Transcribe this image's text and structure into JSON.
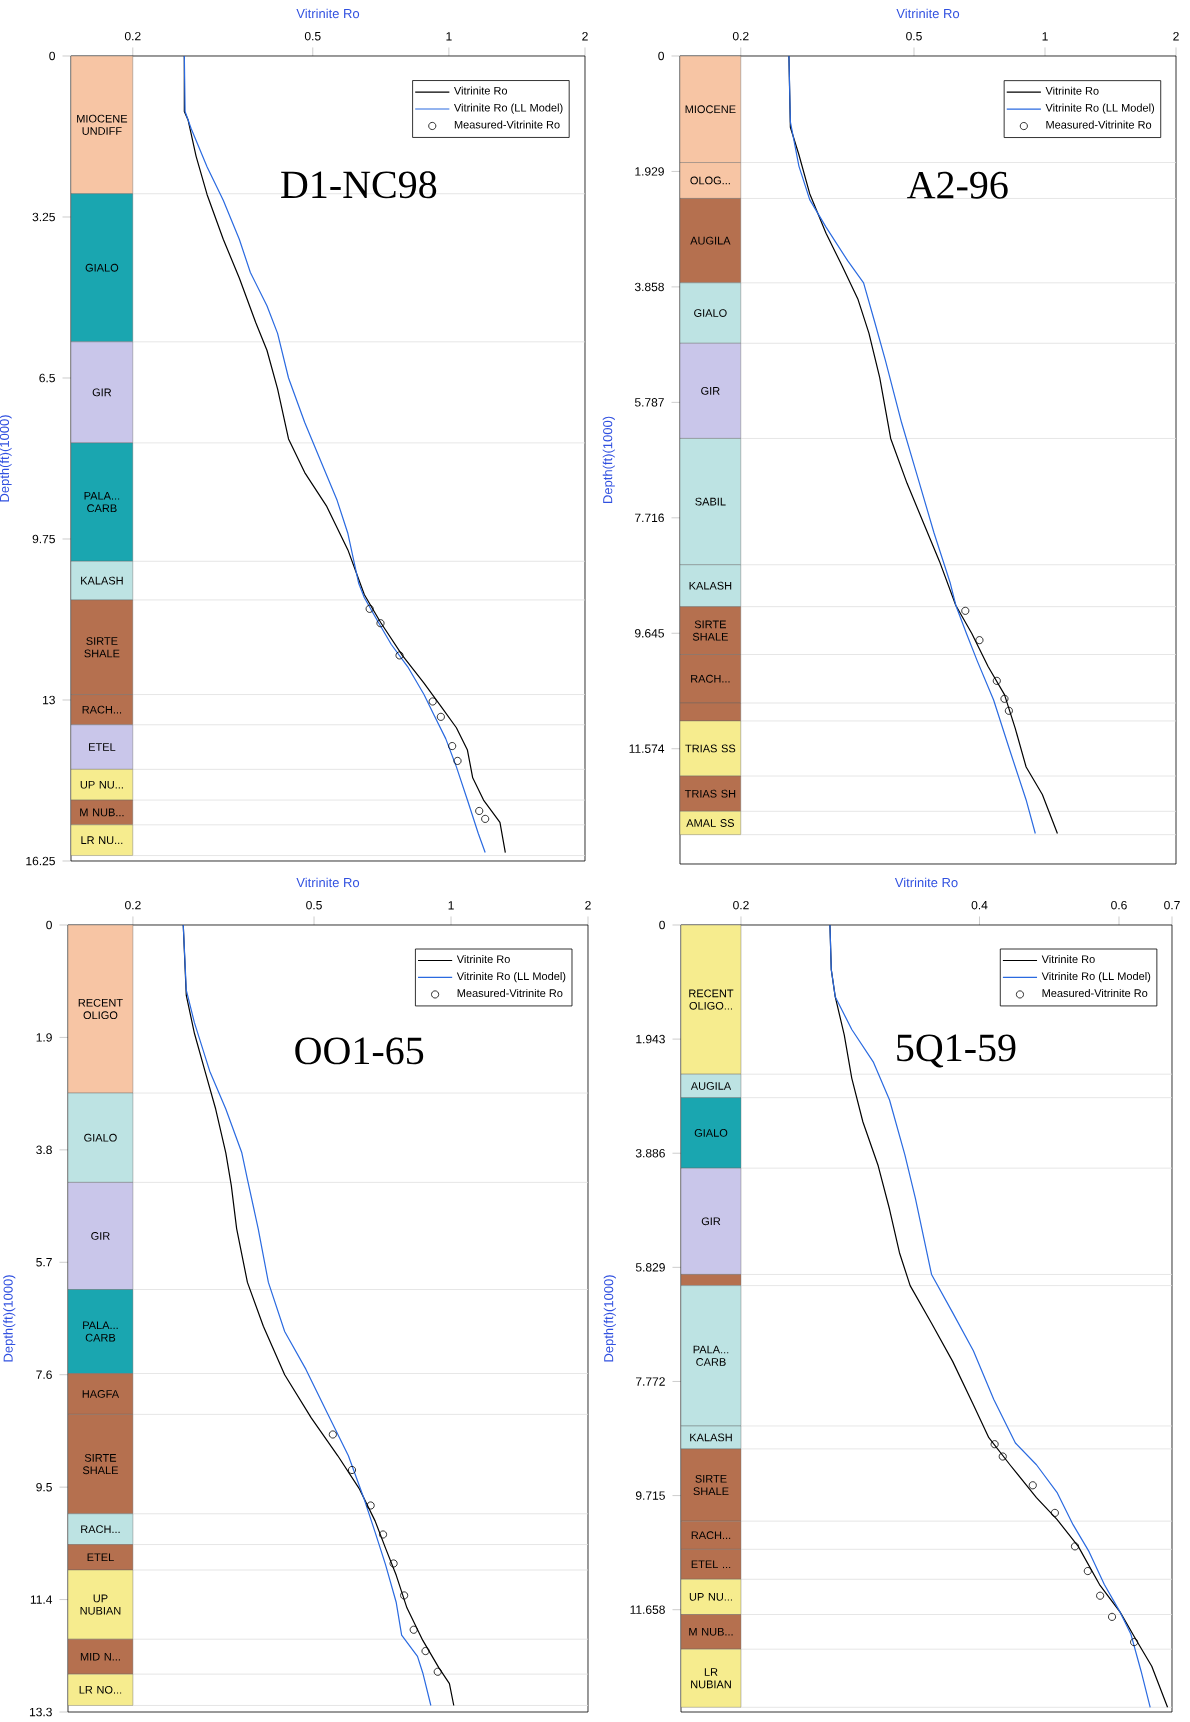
{
  "chart_data": [
    {
      "type": "line",
      "title": "D1-NC98",
      "xlabel": "Vitrinite Ro",
      "ylabel": "Depth(ft)(1000)",
      "log": "x",
      "xlim": [
        0.146,
        2
      ],
      "xticks": [
        0.2,
        0.5,
        1,
        2
      ],
      "ylim": [
        16.25,
        0
      ],
      "yticks": [
        0,
        3.25,
        6.5,
        9.75,
        13,
        16.25
      ],
      "legend": "top right",
      "series": [
        {
          "name": "Vitrinite Ro",
          "color": "#000000",
          "x": [
            0.26,
            0.26,
            0.265,
            0.276,
            0.292,
            0.317,
            0.344,
            0.374,
            0.396,
            0.418,
            0.442,
            0.48,
            0.536,
            0.598,
            0.65,
            0.706,
            0.789,
            0.881,
            0.957,
            1.039,
            1.099,
            1.129,
            1.193,
            1.297,
            1.333
          ],
          "values": [
            0,
            1.12,
            1.29,
            2.02,
            2.8,
            3.7,
            4.48,
            5.38,
            5.94,
            6.72,
            7.73,
            8.41,
            9.08,
            9.97,
            10.87,
            11.43,
            12.1,
            12.66,
            13.11,
            13.56,
            14.01,
            14.57,
            15.02,
            15.47,
            16.08
          ]
        },
        {
          "name": "Vitrinite Ro (LL Model)",
          "color": "#2a6ae0",
          "x": [
            0.26,
            0.261,
            0.269,
            0.292,
            0.317,
            0.344,
            0.364,
            0.396,
            0.418,
            0.442,
            0.48,
            0.521,
            0.566,
            0.598,
            0.632,
            0.65,
            0.687,
            0.746,
            0.811,
            0.881,
            0.931,
            0.984,
            1.039,
            1.099,
            1.161,
            1.203
          ],
          "values": [
            0,
            1.12,
            1.46,
            2.24,
            2.91,
            3.7,
            4.37,
            5.04,
            5.6,
            6.5,
            7.4,
            8.18,
            8.97,
            9.64,
            10.65,
            10.93,
            11.32,
            11.88,
            12.33,
            12.89,
            13.34,
            13.78,
            14.35,
            15.02,
            15.69,
            16.08
          ]
        },
        {
          "name": "Measured-Vitrinite Ro",
          "type": "scatter",
          "marker": "circle",
          "color": "#000000",
          "x": [
            0.668,
            0.706,
            0.778,
            0.921,
            0.96,
            1.017,
            1.045,
            1.167,
            1.203
          ],
          "values": [
            11.16,
            11.45,
            12.1,
            13.03,
            13.34,
            13.93,
            14.23,
            15.24,
            15.4
          ]
        }
      ],
      "bands": [
        {
          "axis": "y",
          "from": 0,
          "to": 2.78,
          "label": "MIOCENE UNDIFF",
          "color": "#f7c5a4"
        },
        {
          "axis": "y",
          "from": 2.78,
          "to": 5.77,
          "label": "GIALO",
          "color": "#1aa6b0"
        },
        {
          "axis": "y",
          "from": 5.77,
          "to": 7.81,
          "label": "GIR",
          "color": "#c9c6ea"
        },
        {
          "axis": "y",
          "from": 7.81,
          "to": 10.2,
          "label": "PALA... CARB",
          "color": "#1aa6b0"
        },
        {
          "axis": "y",
          "from": 10.2,
          "to": 10.98,
          "label": "KALASH",
          "color": "#bde3e3"
        },
        {
          "axis": "y",
          "from": 10.98,
          "to": 12.89,
          "label": "SIRTE SHALE",
          "color": "#b5704f"
        },
        {
          "axis": "y",
          "from": 12.89,
          "to": 13.5,
          "label": "RACH...",
          "color": "#b5704f"
        },
        {
          "axis": "y",
          "from": 13.5,
          "to": 14.4,
          "label": "ETEL",
          "color": "#c9c6ea"
        },
        {
          "axis": "y",
          "from": 14.4,
          "to": 15.02,
          "label": "UP NU...",
          "color": "#f6ec8e"
        },
        {
          "axis": "y",
          "from": 15.02,
          "to": 15.52,
          "label": "M NUB...",
          "color": "#b5704f"
        },
        {
          "axis": "y",
          "from": 15.52,
          "to": 16.14,
          "label": "LR NU...",
          "color": "#f6ec8e"
        }
      ]
    },
    {
      "type": "line",
      "title": "A2-96",
      "xlabel": "Vitrinite Ro",
      "ylabel": "Depth(ft)(1000)",
      "log": "x",
      "xlim": [
        0.145,
        2
      ],
      "xticks": [
        0.2,
        0.5,
        1,
        2
      ],
      "ylim": [
        13.5,
        0
      ],
      "yticks": [
        0,
        1.929,
        3.858,
        5.787,
        7.716,
        9.645,
        11.574
      ],
      "legend": "top right",
      "series": [
        {
          "name": "Vitrinite Ro",
          "color": "#000000",
          "x": [
            0.258,
            0.26,
            0.272,
            0.288,
            0.314,
            0.342,
            0.372,
            0.394,
            0.417,
            0.442,
            0.482,
            0.525,
            0.572,
            0.624,
            0.679,
            0.74,
            0.807,
            0.854,
            0.905,
            0.986,
            1.068
          ],
          "values": [
            0,
            1.19,
            1.65,
            2.3,
            2.96,
            3.51,
            4.07,
            4.63,
            5.37,
            6.39,
            7.14,
            7.79,
            8.44,
            9.18,
            9.65,
            10.2,
            10.67,
            11.23,
            11.88,
            12.34,
            12.99
          ]
        },
        {
          "name": "Vitrinite Ro (LL Model)",
          "color": "#2a6ae0",
          "x": [
            0.258,
            0.26,
            0.272,
            0.288,
            0.314,
            0.352,
            0.383,
            0.406,
            0.43,
            0.468,
            0.51,
            0.556,
            0.606,
            0.624,
            0.66,
            0.699,
            0.762,
            0.83,
            0.905,
            0.95
          ],
          "values": [
            0,
            1.1,
            1.84,
            2.4,
            2.86,
            3.42,
            3.79,
            4.44,
            5.09,
            6.12,
            7.04,
            7.97,
            8.81,
            9.18,
            9.65,
            10.11,
            10.76,
            11.6,
            12.43,
            12.99
          ]
        },
        {
          "name": "Measured-Vitrinite Ro",
          "type": "scatter",
          "marker": "circle",
          "color": "#000000",
          "x": [
            0.656,
            0.707,
            0.775,
            0.807,
            0.826
          ],
          "values": [
            9.27,
            9.76,
            10.44,
            10.74,
            10.94
          ]
        }
      ],
      "bands": [
        {
          "axis": "y",
          "from": 0,
          "to": 1.78,
          "label": "MIOCENE",
          "color": "#f7c5a4"
        },
        {
          "axis": "y",
          "from": 1.78,
          "to": 2.38,
          "label": "OLOG...",
          "color": "#f7c5a4"
        },
        {
          "axis": "y",
          "from": 2.38,
          "to": 3.79,
          "label": "AUGILA",
          "color": "#b5704f"
        },
        {
          "axis": "y",
          "from": 3.79,
          "to": 4.8,
          "label": "GIALO",
          "color": "#bde3e3"
        },
        {
          "axis": "y",
          "from": 4.8,
          "to": 6.39,
          "label": "GIR",
          "color": "#c9c6ea"
        },
        {
          "axis": "y",
          "from": 6.39,
          "to": 8.5,
          "label": "SABIL",
          "color": "#bde3e3"
        },
        {
          "axis": "y",
          "from": 8.5,
          "to": 9.2,
          "label": "KALASH",
          "color": "#bde3e3"
        },
        {
          "axis": "y",
          "from": 9.2,
          "to": 10.0,
          "label": "SIRTE SHALE",
          "color": "#b5704f"
        },
        {
          "axis": "y",
          "from": 10.0,
          "to": 10.81,
          "label": "RACH...",
          "color": "#b5704f"
        },
        {
          "axis": "y",
          "from": 10.81,
          "to": 11.11,
          "label": null,
          "color": "#b5704f"
        },
        {
          "axis": "y",
          "from": 11.11,
          "to": 12.03,
          "label": "TRIAS SS",
          "color": "#f6ec8e"
        },
        {
          "axis": "y",
          "from": 12.03,
          "to": 12.62,
          "label": "TRIAS SH",
          "color": "#b5704f"
        },
        {
          "axis": "y",
          "from": 12.62,
          "to": 13.01,
          "label": "AMAL SS",
          "color": "#f6ec8e"
        }
      ]
    },
    {
      "type": "line",
      "title": "OO1-65",
      "xlabel": "Vitrinite Ro",
      "ylabel": "Depth(ft)(1000)",
      "log": "x",
      "xlim": [
        0.144,
        2
      ],
      "xticks": [
        0.2,
        0.5,
        1,
        2
      ],
      "ylim": [
        13.3,
        0
      ],
      "yticks": [
        0,
        1.9,
        3.8,
        5.7,
        7.6,
        9.5,
        11.4,
        13.3
      ],
      "legend": "top right",
      "series": [
        {
          "name": "Vitrinite Ro",
          "color": "#000000",
          "x": [
            0.258,
            0.262,
            0.273,
            0.288,
            0.304,
            0.32,
            0.329,
            0.338,
            0.357,
            0.387,
            0.431,
            0.493,
            0.564,
            0.628,
            0.681,
            0.718,
            0.758,
            0.8,
            0.867,
            0.94,
            0.992,
            1.014
          ],
          "values": [
            0,
            1.19,
            1.83,
            2.47,
            3.11,
            3.85,
            4.4,
            5.13,
            6.04,
            6.78,
            7.6,
            8.33,
            8.97,
            9.52,
            10.07,
            10.53,
            10.99,
            11.54,
            12.09,
            12.55,
            12.82,
            13.19
          ]
        },
        {
          "name": "Vitrinite Ro (LL Model)",
          "color": "#2a6ae0",
          "x": [
            0.258,
            0.262,
            0.273,
            0.295,
            0.32,
            0.347,
            0.357,
            0.377,
            0.397,
            0.431,
            0.48,
            0.534,
            0.595,
            0.645,
            0.681,
            0.718,
            0.758,
            0.779,
            0.844,
            0.867,
            0.903
          ],
          "values": [
            0,
            1.1,
            1.65,
            2.47,
            3.11,
            3.85,
            4.3,
            5.13,
            6.04,
            6.87,
            7.51,
            8.24,
            8.97,
            9.71,
            10.26,
            10.81,
            11.45,
            12.0,
            12.36,
            12.64,
            13.19
          ]
        },
        {
          "name": "Measured-Vitrinite Ro",
          "type": "scatter",
          "marker": "circle",
          "color": "#000000",
          "x": [
            0.55,
            0.606,
            0.666,
            0.709,
            0.748,
            0.789,
            0.828,
            0.879,
            0.935
          ],
          "values": [
            8.61,
            9.21,
            9.81,
            10.3,
            10.79,
            11.33,
            11.91,
            12.27,
            12.62
          ]
        }
      ],
      "bands": [
        {
          "axis": "y",
          "from": 0,
          "to": 2.84,
          "label": "RECENT OLIGO",
          "color": "#f7c5a4"
        },
        {
          "axis": "y",
          "from": 2.84,
          "to": 4.35,
          "label": "GIALO",
          "color": "#bde3e3"
        },
        {
          "axis": "y",
          "from": 4.35,
          "to": 6.16,
          "label": "GIR",
          "color": "#c9c6ea"
        },
        {
          "axis": "y",
          "from": 6.16,
          "to": 7.58,
          "label": "PALA... CARB",
          "color": "#1aa6b0"
        },
        {
          "axis": "y",
          "from": 7.58,
          "to": 8.27,
          "label": "HAGFA",
          "color": "#b5704f"
        },
        {
          "axis": "y",
          "from": 8.27,
          "to": 9.95,
          "label": "SIRTE SHALE",
          "color": "#b5704f"
        },
        {
          "axis": "y",
          "from": 9.95,
          "to": 10.47,
          "label": "RACH...",
          "color": "#bde3e3"
        },
        {
          "axis": "y",
          "from": 10.47,
          "to": 10.9,
          "label": "ETEL",
          "color": "#b5704f"
        },
        {
          "axis": "y",
          "from": 10.9,
          "to": 12.07,
          "label": "UP NUBIAN",
          "color": "#f6ec8e"
        },
        {
          "axis": "y",
          "from": 12.07,
          "to": 12.66,
          "label": "MID N...",
          "color": "#b5704f"
        },
        {
          "axis": "y",
          "from": 12.66,
          "to": 13.19,
          "label": "LR NO...",
          "color": "#f6ec8e"
        }
      ]
    },
    {
      "type": "line",
      "title": "5Q1-59",
      "xlabel": "Vitrinite Ro",
      "ylabel": "Depth(ft)(1000)",
      "log": "x",
      "xlim": [
        0.168,
        0.7
      ],
      "xticks": [
        0.2,
        0.4,
        0.6,
        0.7
      ],
      "ylim": [
        13.4,
        0
      ],
      "yticks": [
        0,
        1.943,
        3.886,
        5.829,
        7.772,
        9.715,
        11.658
      ],
      "legend": "top right",
      "series": [
        {
          "name": "Vitrinite Ro",
          "color": "#000000",
          "x": [
            0.259,
            0.26,
            0.263,
            0.27,
            0.276,
            0.285,
            0.298,
            0.308,
            0.317,
            0.327,
            0.348,
            0.37,
            0.393,
            0.411,
            0.437,
            0.472,
            0.501,
            0.533,
            0.567,
            0.602,
            0.63,
            0.66,
            0.691
          ],
          "values": [
            0,
            0.76,
            1.22,
            1.87,
            2.61,
            3.35,
            4.1,
            4.84,
            5.58,
            6.14,
            6.78,
            7.43,
            8.17,
            8.73,
            9.19,
            9.75,
            10.12,
            10.58,
            11.23,
            11.7,
            12.16,
            12.62,
            13.32
          ]
        },
        {
          "name": "Vitrinite Ro (LL Model)",
          "color": "#2a6ae0",
          "x": [
            0.259,
            0.26,
            0.263,
            0.276,
            0.294,
            0.308,
            0.322,
            0.332,
            0.348,
            0.37,
            0.393,
            0.417,
            0.444,
            0.472,
            0.501,
            0.525,
            0.55,
            0.575,
            0.602,
            0.621,
            0.64,
            0.657
          ],
          "values": [
            0,
            0.76,
            1.22,
            1.78,
            2.34,
            2.98,
            3.91,
            4.65,
            5.95,
            6.6,
            7.25,
            8.08,
            8.82,
            9.19,
            9.66,
            10.21,
            10.67,
            11.23,
            11.7,
            12.07,
            12.71,
            13.32
          ]
        },
        {
          "name": "Measured-Vitrinite Ro",
          "type": "scatter",
          "marker": "circle",
          "color": "#000000",
          "x": [
            0.418,
            0.428,
            0.467,
            0.498,
            0.528,
            0.548,
            0.568,
            0.588,
            0.627
          ],
          "values": [
            8.84,
            9.05,
            9.54,
            10.01,
            10.58,
            11.0,
            11.42,
            11.78,
            12.21
          ]
        }
      ],
      "bands": [
        {
          "axis": "y",
          "from": 0,
          "to": 2.54,
          "label": "RECENT OLIGO...",
          "color": "#f6ec8e"
        },
        {
          "axis": "y",
          "from": 2.54,
          "to": 2.94,
          "label": "AUGILA",
          "color": "#bde3e3"
        },
        {
          "axis": "y",
          "from": 2.94,
          "to": 4.14,
          "label": "GIALO",
          "color": "#1aa6b0"
        },
        {
          "axis": "y",
          "from": 4.14,
          "to": 5.95,
          "label": "GIR",
          "color": "#c9c6ea"
        },
        {
          "axis": "y",
          "from": 5.95,
          "to": 6.14,
          "label": null,
          "color": "#b5704f"
        },
        {
          "axis": "y",
          "from": 6.14,
          "to": 8.53,
          "label": "PALA... CARB",
          "color": "#bde3e3"
        },
        {
          "axis": "y",
          "from": 8.53,
          "to": 8.92,
          "label": "KALASH",
          "color": "#bde3e3"
        },
        {
          "axis": "y",
          "from": 8.92,
          "to": 10.15,
          "label": "SIRTE SHALE",
          "color": "#b5704f"
        },
        {
          "axis": "y",
          "from": 10.15,
          "to": 10.63,
          "label": "RACH...",
          "color": "#b5704f"
        },
        {
          "axis": "y",
          "from": 10.63,
          "to": 11.14,
          "label": "ETEL ...",
          "color": "#b5704f"
        },
        {
          "axis": "y",
          "from": 11.14,
          "to": 11.74,
          "label": "UP NU...",
          "color": "#f6ec8e"
        },
        {
          "axis": "y",
          "from": 11.74,
          "to": 12.33,
          "label": "M NUB...",
          "color": "#b5704f"
        },
        {
          "axis": "y",
          "from": 12.33,
          "to": 13.32,
          "label": "LR NUBIAN",
          "color": "#f6ec8e"
        }
      ]
    }
  ]
}
